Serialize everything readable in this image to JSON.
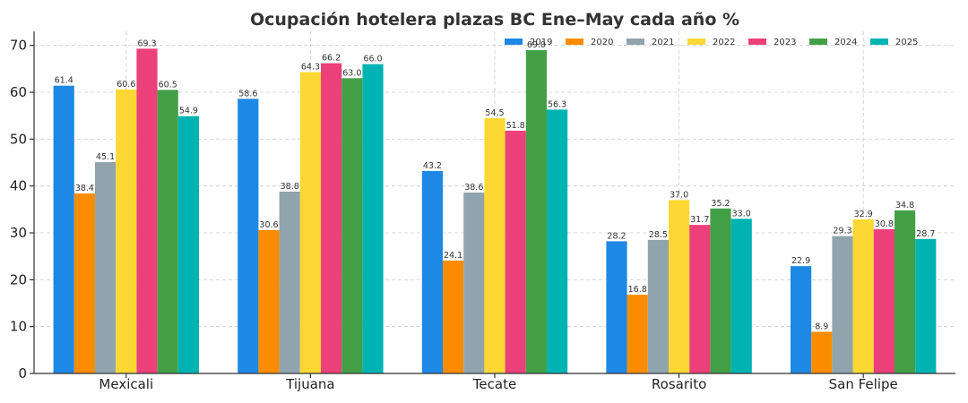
{
  "chart_data": {
    "type": "bar",
    "title": "Ocupación hotelera plazas BC Ene–May cada año %",
    "xlabel": "",
    "ylabel": "",
    "ylim": [
      0,
      73
    ],
    "yticks": [
      0,
      10,
      20,
      30,
      40,
      50,
      60,
      70
    ],
    "grid": true,
    "legend_position": "top-right",
    "categories": [
      "Mexicali",
      "Tijuana",
      "Tecate",
      "Rosarito",
      "San Felipe"
    ],
    "series": [
      {
        "name": "2019",
        "color": "#1e88e5",
        "values": [
          61.4,
          58.6,
          43.2,
          28.2,
          22.9
        ]
      },
      {
        "name": "2020",
        "color": "#fb8c00",
        "values": [
          38.4,
          30.6,
          24.1,
          16.8,
          8.9
        ]
      },
      {
        "name": "2021",
        "color": "#90a4ae",
        "values": [
          45.1,
          38.8,
          38.6,
          28.5,
          29.3
        ]
      },
      {
        "name": "2022",
        "color": "#fdd835",
        "values": [
          60.6,
          64.3,
          54.5,
          37.0,
          32.9
        ]
      },
      {
        "name": "2023",
        "color": "#ec407a",
        "values": [
          69.3,
          66.2,
          51.8,
          31.7,
          30.8
        ]
      },
      {
        "name": "2024",
        "color": "#43a047",
        "values": [
          60.5,
          63.0,
          69.0,
          35.2,
          34.8
        ]
      },
      {
        "name": "2025",
        "color": "#00b3b3",
        "values": [
          54.9,
          66.0,
          56.3,
          33.0,
          28.7
        ]
      }
    ]
  }
}
